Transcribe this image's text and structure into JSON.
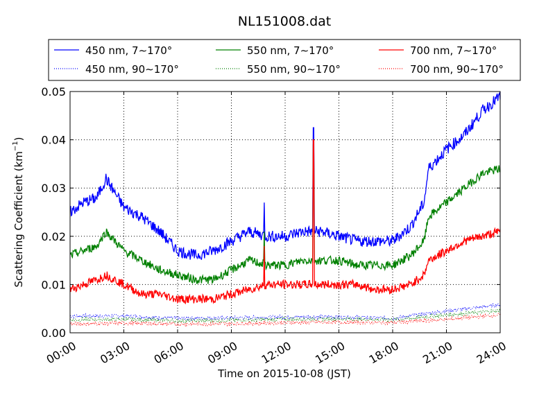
{
  "chart_data": {
    "type": "line",
    "title": "NL151008.dat",
    "xlabel": "Time on 2015-10-08 (JST)",
    "ylabel_main": "Scattering Coefficient (km",
    "ylabel_sup": "−1",
    "ylabel_tail": ")",
    "xlim": [
      "00:00",
      "24:00"
    ],
    "ylim": [
      0.0,
      0.05
    ],
    "xticks": [
      "00:00",
      "03:00",
      "06:00",
      "09:00",
      "12:00",
      "15:00",
      "18:00",
      "21:00",
      "24:00"
    ],
    "yticks": [
      "0.00",
      "0.01",
      "0.02",
      "0.03",
      "0.04",
      "0.05"
    ],
    "grid": true,
    "legend_position": "top, above plot",
    "series": [
      {
        "name": "450 nm, 7∼170°",
        "color": "#0000ff",
        "style": "solid",
        "x": [
          "00:00",
          "00:45",
          "01:30",
          "02:00",
          "03:00",
          "04:00",
          "05:00",
          "06:00",
          "07:00",
          "08:00",
          "09:00",
          "10:00",
          "11:00",
          "12:00",
          "13:00",
          "14:00",
          "15:00",
          "16:00",
          "17:00",
          "18:00",
          "19:00",
          "19:45",
          "20:00",
          "21:00",
          "22:00",
          "23:00",
          "24:00"
        ],
        "y": [
          0.025,
          0.027,
          0.028,
          0.032,
          0.026,
          0.024,
          0.021,
          0.017,
          0.016,
          0.017,
          0.019,
          0.021,
          0.02,
          0.02,
          0.021,
          0.021,
          0.02,
          0.019,
          0.019,
          0.019,
          0.022,
          0.027,
          0.034,
          0.038,
          0.041,
          0.046,
          0.049
        ]
      },
      {
        "name": "550 nm, 7∼170°",
        "color": "#008000",
        "style": "solid",
        "x": [
          "00:00",
          "00:45",
          "01:30",
          "02:00",
          "03:00",
          "04:00",
          "05:00",
          "06:00",
          "07:00",
          "08:00",
          "09:00",
          "10:00",
          "11:00",
          "12:00",
          "13:00",
          "14:00",
          "15:00",
          "16:00",
          "17:00",
          "18:00",
          "19:00",
          "19:45",
          "20:00",
          "21:00",
          "22:00",
          "23:00",
          "24:00"
        ],
        "y": [
          0.016,
          0.017,
          0.018,
          0.021,
          0.017,
          0.015,
          0.013,
          0.012,
          0.011,
          0.011,
          0.013,
          0.015,
          0.014,
          0.014,
          0.015,
          0.015,
          0.015,
          0.014,
          0.014,
          0.014,
          0.016,
          0.019,
          0.024,
          0.027,
          0.03,
          0.033,
          0.034
        ]
      },
      {
        "name": "700 nm, 7∼170°",
        "color": "#ff0000",
        "style": "solid",
        "x": [
          "00:00",
          "00:45",
          "01:30",
          "02:00",
          "03:00",
          "04:00",
          "05:00",
          "06:00",
          "07:00",
          "08:00",
          "09:00",
          "10:00",
          "11:00",
          "12:00",
          "13:00",
          "14:00",
          "15:00",
          "16:00",
          "17:00",
          "18:00",
          "19:00",
          "19:45",
          "20:00",
          "21:00",
          "22:00",
          "23:00",
          "24:00"
        ],
        "y": [
          0.009,
          0.01,
          0.011,
          0.012,
          0.01,
          0.008,
          0.008,
          0.007,
          0.007,
          0.007,
          0.008,
          0.009,
          0.01,
          0.01,
          0.01,
          0.01,
          0.01,
          0.01,
          0.009,
          0.009,
          0.01,
          0.012,
          0.015,
          0.017,
          0.019,
          0.02,
          0.021
        ]
      },
      {
        "name": "450 nm, 90∼170°",
        "color": "#0000ff",
        "style": "dotted",
        "x": [
          "00:00",
          "03:00",
          "06:00",
          "09:00",
          "12:00",
          "15:00",
          "18:00",
          "21:00",
          "24:00"
        ],
        "y": [
          0.0035,
          0.0035,
          0.003,
          0.0031,
          0.0033,
          0.0033,
          0.003,
          0.0045,
          0.0058
        ]
      },
      {
        "name": "550 nm, 90∼170°",
        "color": "#008000",
        "style": "dotted",
        "x": [
          "00:00",
          "03:00",
          "06:00",
          "09:00",
          "12:00",
          "15:00",
          "18:00",
          "21:00",
          "24:00"
        ],
        "y": [
          0.0027,
          0.0028,
          0.0025,
          0.0026,
          0.0028,
          0.0029,
          0.0027,
          0.0037,
          0.0046
        ]
      },
      {
        "name": "700 nm, 90∼170°",
        "color": "#ff0000",
        "style": "dotted",
        "x": [
          "00:00",
          "03:00",
          "06:00",
          "09:00",
          "12:00",
          "15:00",
          "18:00",
          "21:00",
          "24:00"
        ],
        "y": [
          0.0018,
          0.002,
          0.0018,
          0.0019,
          0.0021,
          0.0022,
          0.0021,
          0.0028,
          0.0037
        ]
      }
    ],
    "spikes": [
      {
        "time": "13:35",
        "values": [
          0.0425,
          0.039,
          0.04
        ]
      },
      {
        "time": "10:50",
        "values": [
          0.027,
          0.021,
          0.018
        ]
      }
    ]
  }
}
